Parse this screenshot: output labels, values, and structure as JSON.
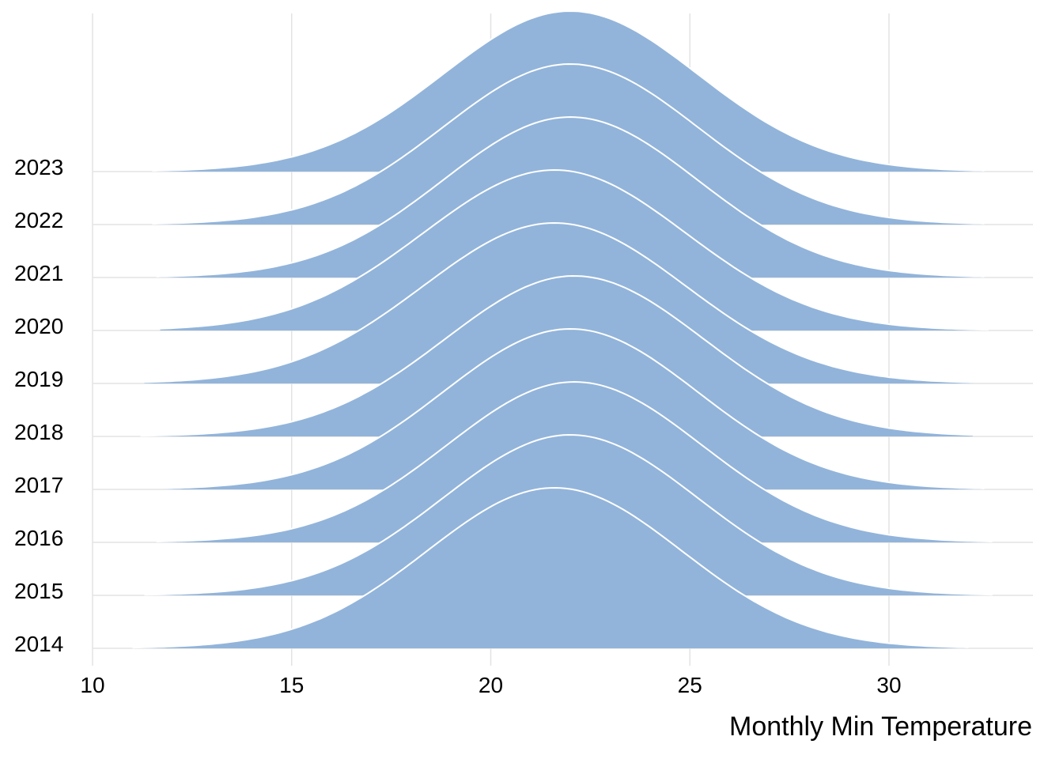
{
  "chart_data": {
    "type": "area",
    "subtype": "ridgeline",
    "title": "",
    "xlabel": "Monthly Min Temperature",
    "ylabel": "",
    "xlim": [
      10,
      33.5
    ],
    "x_ticks": [
      10,
      15,
      20,
      25,
      30
    ],
    "grid": true,
    "fill_color": "#92b4da",
    "outline_color": "#ffffff",
    "series": [
      {
        "name": "2014",
        "mean": 21.6,
        "sd": 3.2,
        "x_range": [
          11.0,
          32.0
        ]
      },
      {
        "name": "2015",
        "mean": 22.0,
        "sd": 3.2,
        "x_range": [
          11.3,
          32.6
        ]
      },
      {
        "name": "2016",
        "mean": 22.1,
        "sd": 3.2,
        "x_range": [
          11.6,
          32.6
        ]
      },
      {
        "name": "2017",
        "mean": 22.0,
        "sd": 3.2,
        "x_range": [
          11.8,
          32.4
        ]
      },
      {
        "name": "2018",
        "mean": 22.1,
        "sd": 3.25,
        "x_range": [
          11.2,
          32.1
        ]
      },
      {
        "name": "2019",
        "mean": 21.6,
        "sd": 3.3,
        "x_range": [
          11.3,
          32.1
        ]
      },
      {
        "name": "2020",
        "mean": 21.6,
        "sd": 3.3,
        "x_range": [
          11.7,
          32.5
        ]
      },
      {
        "name": "2021",
        "mean": 22.0,
        "sd": 3.2,
        "x_range": [
          11.6,
          32.4
        ]
      },
      {
        "name": "2022",
        "mean": 22.0,
        "sd": 3.2,
        "x_range": [
          11.5,
          32.4
        ]
      },
      {
        "name": "2023",
        "mean": 22.0,
        "sd": 3.2,
        "x_range": [
          11.5,
          32.4
        ]
      }
    ]
  }
}
